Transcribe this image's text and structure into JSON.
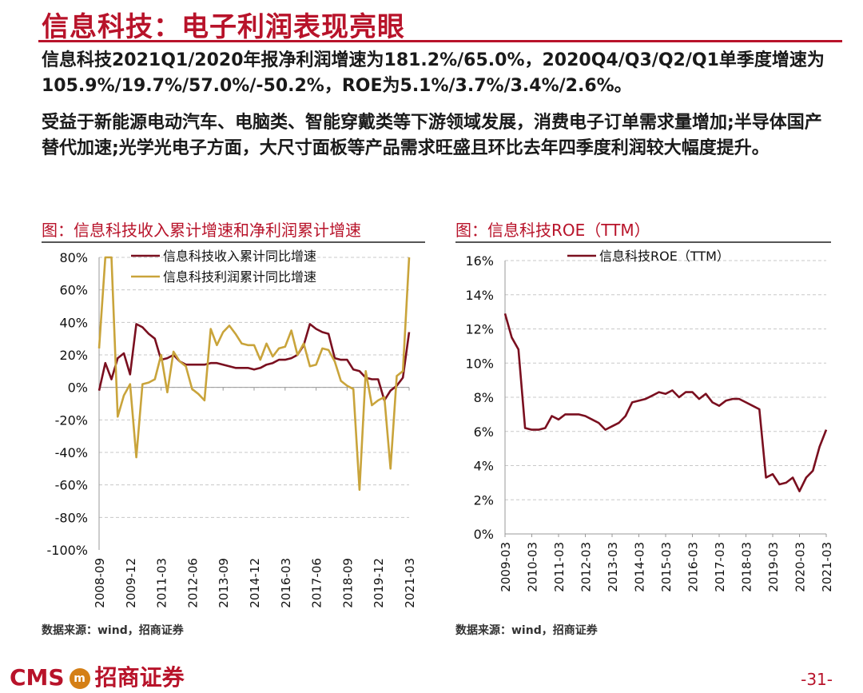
{
  "page": {
    "title": "信息科技：电子利润表现亮眼",
    "para1": "信息科技2021Q1/2020年报净利润增速为181.2%/65.0%，2020Q4/Q3/Q2/Q1单季度增速为105.9%/19.7%/57.0%/-50.2%，ROE为5.1%/3.7%/3.4%/2.6%。",
    "para2": "受益于新能源电动汽车、电脑类、智能穿戴类等下游领域发展，消费电子订单需求量增加;半导体国产替代加速;光学光电子方面，大尺寸面板等产品需求旺盛且环比去年四季度利润较大幅度提升。",
    "left_chart_title": "图：信息科技收入累计增速和净利润累计增速",
    "right_chart_title": "图：信息科技ROE（TTM）",
    "source_left": "数据来源：wind，招商证券",
    "source_right": "数据来源：wind，招商证券",
    "logo_text": "CMS",
    "logo_cn": "招商证券",
    "page_number": "-31-",
    "colors": {
      "accent": "#b8132a",
      "series_dark": "#7a0f1f",
      "series_gold": "#c9a43b"
    }
  },
  "chart_data": [
    {
      "type": "line",
      "x_ticks": [
        "2008-09",
        "2009-12",
        "2011-03",
        "2012-06",
        "2013-09",
        "2014-12",
        "2016-03",
        "2017-06",
        "2018-09",
        "2019-12",
        "2021-03"
      ],
      "ylim": [
        -100,
        80
      ],
      "y_ticks": [
        "80%",
        "60%",
        "40%",
        "20%",
        "0%",
        "-20%",
        "-40%",
        "-60%",
        "-80%",
        "-100%"
      ],
      "legend_position": "top",
      "series": [
        {
          "name": "信息科技收入累计同比增速",
          "color": "#7a0f1f",
          "values": [
            -2,
            15,
            5,
            18,
            21,
            8,
            39,
            37,
            33,
            30,
            17,
            18,
            20,
            16,
            14,
            14,
            14,
            14,
            15,
            15,
            14,
            13,
            12,
            12,
            12,
            11,
            12,
            14,
            15,
            17,
            17,
            18,
            20,
            26,
            39,
            36,
            34,
            33,
            18,
            17,
            17,
            11,
            10,
            6,
            5,
            5,
            -8,
            -2,
            1,
            6,
            34
          ]
        },
        {
          "name": "信息科技利润累计同比增速",
          "color": "#c9a43b",
          "values": [
            24,
            80,
            80,
            -18,
            -5,
            2,
            -43,
            2,
            3,
            5,
            20,
            -3,
            22,
            16,
            13,
            -1,
            -4,
            -8,
            36,
            26,
            34,
            38,
            33,
            27,
            26,
            26,
            17,
            27,
            19,
            24,
            25,
            35,
            20,
            27,
            13,
            14,
            24,
            23,
            16,
            4,
            1,
            -1,
            -63,
            10,
            -11,
            -8,
            -6,
            -50,
            7,
            10,
            80
          ]
        }
      ]
    },
    {
      "type": "line",
      "x_ticks": [
        "2009-03",
        "2010-03",
        "2011-03",
        "2012-03",
        "2013-03",
        "2014-03",
        "2015-03",
        "2016-03",
        "2017-03",
        "2018-03",
        "2019-03",
        "2020-03",
        "2021-03"
      ],
      "ylim": [
        0,
        16
      ],
      "y_ticks": [
        "16%",
        "14%",
        "12%",
        "10%",
        "8%",
        "6%",
        "4%",
        "2%",
        "0%"
      ],
      "legend_position": "top",
      "series": [
        {
          "name": "信息科技ROE（TTM）",
          "color": "#7a0f1f",
          "values": [
            12.9,
            11.5,
            10.8,
            6.2,
            6.1,
            6.1,
            6.2,
            6.9,
            6.7,
            7.0,
            7.0,
            7.0,
            6.9,
            6.7,
            6.5,
            6.1,
            6.3,
            6.5,
            6.9,
            7.7,
            7.8,
            7.9,
            8.1,
            8.3,
            8.2,
            8.4,
            8.0,
            8.3,
            8.3,
            7.9,
            8.2,
            7.7,
            7.5,
            7.8,
            7.9,
            7.9,
            7.7,
            7.5,
            7.3,
            3.3,
            3.5,
            2.9,
            3.0,
            3.3,
            2.5,
            3.3,
            3.7,
            5.1,
            6.1
          ]
        }
      ]
    }
  ]
}
